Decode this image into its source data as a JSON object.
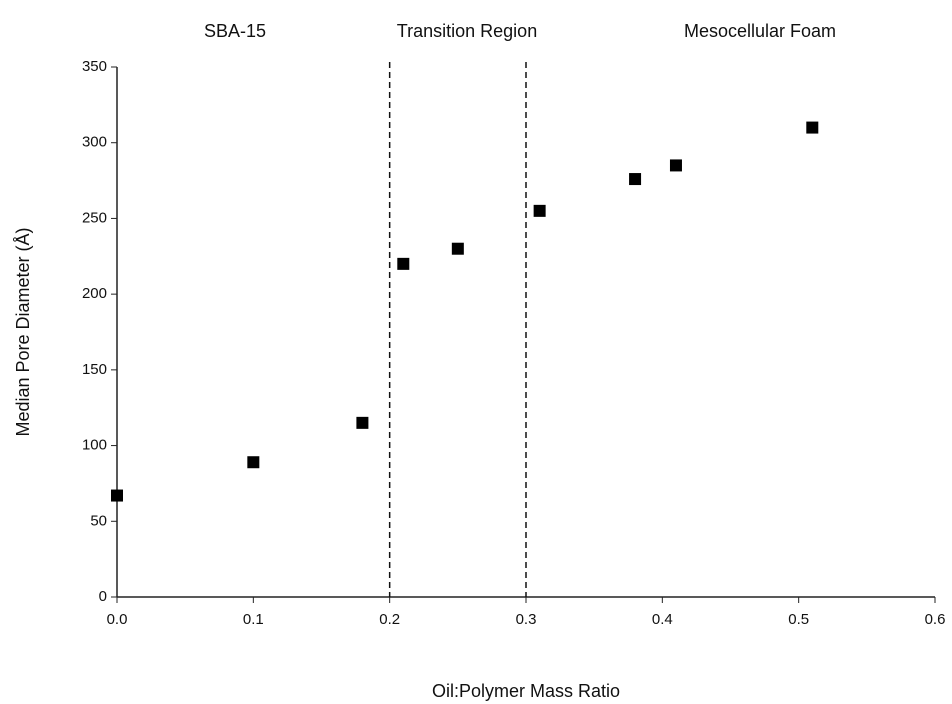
{
  "chart_data": {
    "type": "scatter",
    "x_label": "Oil:Polymer Mass Ratio",
    "y_label": "Median Pore Diameter (Å)",
    "annotations": [
      "SBA-15",
      "Transition Region",
      "Mesocellular Foam"
    ],
    "x": [
      0,
      0.1,
      0.18,
      0.21,
      0.25,
      0.31,
      0.38,
      0.41,
      0.51
    ],
    "values": [
      67,
      89,
      115,
      220,
      230,
      255,
      276,
      285,
      310
    ],
    "color": "#000000",
    "vlines": [
      0.2,
      0.3
    ],
    "xlim": [
      0,
      0.6
    ],
    "xticks": [
      {
        "value": 0,
        "label": "0.0"
      },
      0.1,
      0.2,
      0.3,
      0.4,
      0.5,
      0.6
    ],
    "ylim": [
      0,
      350
    ],
    "yticks": [
      0,
      50,
      100,
      150,
      200,
      250,
      300,
      350
    ],
    "grid": false
  }
}
